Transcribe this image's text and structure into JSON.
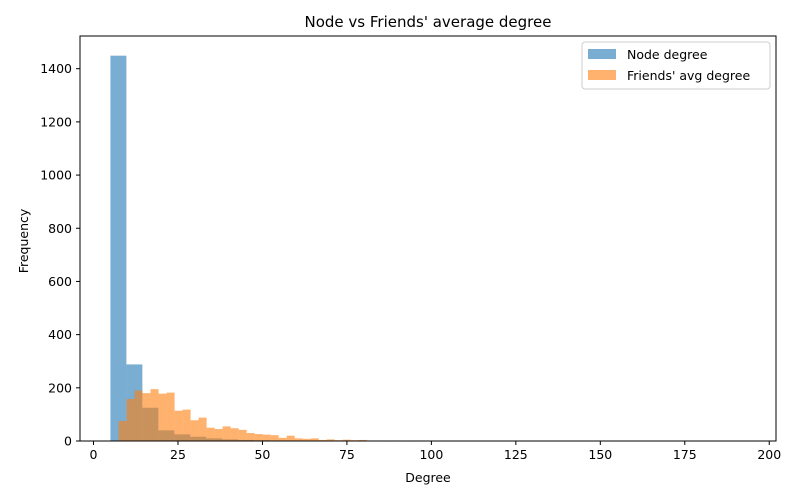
{
  "chart_data": {
    "type": "bar",
    "subtype": "overlapping-histogram",
    "title": "Node vs Friends' average degree",
    "xlabel": "Degree",
    "ylabel": "Frequency",
    "xlim": [
      -4,
      202
    ],
    "ylim": [
      0,
      1523
    ],
    "xticks": [
      0,
      25,
      50,
      75,
      100,
      125,
      150,
      175,
      200
    ],
    "yticks": [
      0,
      200,
      400,
      600,
      800,
      1000,
      1200,
      1400
    ],
    "grid": false,
    "legend_position": "upper right",
    "series": [
      {
        "name": "Node degree",
        "color": "#1f77b4",
        "alpha": 0.6,
        "bin_width": 4.73,
        "bins": [
          {
            "x0": 5.0,
            "count": 1449
          },
          {
            "x0": 9.73,
            "count": 288
          },
          {
            "x0": 14.46,
            "count": 125
          },
          {
            "x0": 19.19,
            "count": 40
          },
          {
            "x0": 23.92,
            "count": 25
          },
          {
            "x0": 28.65,
            "count": 16
          },
          {
            "x0": 33.38,
            "count": 10
          },
          {
            "x0": 38.11,
            "count": 6
          },
          {
            "x0": 42.84,
            "count": 4
          },
          {
            "x0": 47.57,
            "count": 3
          },
          {
            "x0": 52.3,
            "count": 2
          },
          {
            "x0": 57.03,
            "count": 2
          },
          {
            "x0": 61.76,
            "count": 1
          },
          {
            "x0": 66.49,
            "count": 1
          },
          {
            "x0": 71.22,
            "count": 1
          },
          {
            "x0": 75.95,
            "count": 1
          },
          {
            "x0": 80.68,
            "count": 1
          },
          {
            "x0": 85.41,
            "count": 1
          },
          {
            "x0": 99.6,
            "count": 1
          },
          {
            "x0": 113.8,
            "count": 1
          },
          {
            "x0": 165.8,
            "count": 1
          },
          {
            "x0": 184.7,
            "count": 1
          },
          {
            "x0": 189.4,
            "count": 1
          }
        ]
      },
      {
        "name": "Friends' avg degree",
        "color": "#ff7f0e",
        "alpha": 0.6,
        "bin_width": 2.37,
        "bins": [
          {
            "x0": 7.4,
            "count": 75
          },
          {
            "x0": 9.77,
            "count": 158
          },
          {
            "x0": 12.14,
            "count": 190
          },
          {
            "x0": 14.51,
            "count": 180
          },
          {
            "x0": 16.88,
            "count": 195
          },
          {
            "x0": 19.25,
            "count": 178
          },
          {
            "x0": 21.62,
            "count": 182
          },
          {
            "x0": 23.99,
            "count": 114
          },
          {
            "x0": 26.36,
            "count": 118
          },
          {
            "x0": 28.73,
            "count": 78
          },
          {
            "x0": 31.1,
            "count": 88
          },
          {
            "x0": 33.47,
            "count": 50
          },
          {
            "x0": 35.84,
            "count": 45
          },
          {
            "x0": 38.21,
            "count": 55
          },
          {
            "x0": 40.58,
            "count": 48
          },
          {
            "x0": 42.95,
            "count": 42
          },
          {
            "x0": 45.32,
            "count": 30
          },
          {
            "x0": 47.69,
            "count": 26
          },
          {
            "x0": 50.06,
            "count": 24
          },
          {
            "x0": 52.43,
            "count": 22
          },
          {
            "x0": 54.8,
            "count": 12
          },
          {
            "x0": 57.17,
            "count": 20
          },
          {
            "x0": 59.54,
            "count": 10
          },
          {
            "x0": 61.91,
            "count": 8
          },
          {
            "x0": 64.28,
            "count": 10
          },
          {
            "x0": 66.65,
            "count": 4
          },
          {
            "x0": 69.02,
            "count": 6
          },
          {
            "x0": 71.39,
            "count": 3
          },
          {
            "x0": 73.76,
            "count": 5
          },
          {
            "x0": 76.13,
            "count": 3
          },
          {
            "x0": 78.5,
            "count": 4
          },
          {
            "x0": 80.87,
            "count": 2
          },
          {
            "x0": 83.24,
            "count": 2
          },
          {
            "x0": 85.61,
            "count": 1
          },
          {
            "x0": 87.98,
            "count": 2
          },
          {
            "x0": 92.72,
            "count": 1
          },
          {
            "x0": 95.09,
            "count": 2
          },
          {
            "x0": 97.46,
            "count": 1
          },
          {
            "x0": 99.83,
            "count": 1
          },
          {
            "x0": 102.2,
            "count": 1
          }
        ]
      }
    ]
  }
}
